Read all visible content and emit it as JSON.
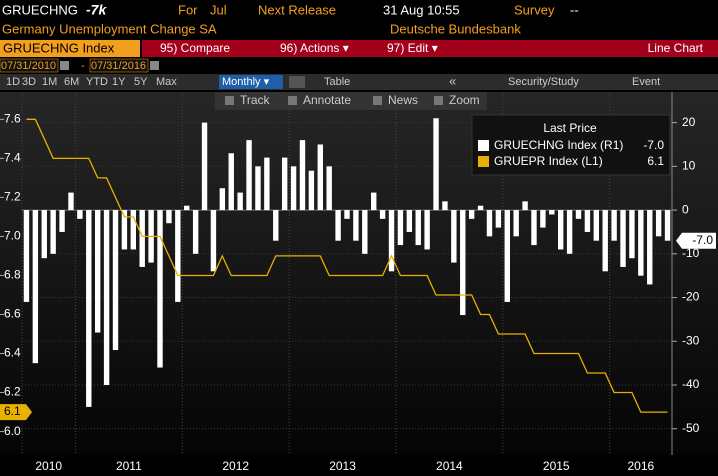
{
  "header": {
    "ticker": "GRUECHNG",
    "last": "-7k",
    "period_label": "For",
    "period": "Jul",
    "release_label": "Next Release",
    "release": "31 Aug 10:55",
    "survey_label": "Survey",
    "survey": "--",
    "name": "Germany Unemployment Change SA",
    "source": "Deutsche Bundesbank"
  },
  "toolbar": {
    "security": "GRUECHNG Index",
    "menu": [
      "95) Compare",
      "96) Actions ▾",
      "97) Edit ▾"
    ],
    "chart_type": "Line Chart",
    "start_date": "07/31/2010",
    "date_sep": "-",
    "end_date": "07/31/2016",
    "ranges": [
      "1D",
      "3D",
      "1M",
      "6M",
      "YTD",
      "1Y",
      "5Y",
      "Max"
    ],
    "frequency": "Monthly ▾",
    "table": "Table",
    "collapse": "«",
    "security_study": "Security/Study",
    "event": "Event",
    "tools": [
      "Track",
      "Annotate",
      "News",
      "Zoom"
    ]
  },
  "chart_data": {
    "type": "bar",
    "legend_title": "Last Price",
    "categories": [
      "2010",
      null,
      null,
      null,
      null,
      null,
      "2011",
      null,
      null,
      null,
      null,
      null,
      null,
      null,
      null,
      null,
      null,
      null,
      "2012",
      null,
      null,
      null,
      null,
      null,
      null,
      null,
      null,
      null,
      null,
      null,
      "2013",
      null,
      null,
      null,
      null,
      null,
      null,
      null,
      null,
      null,
      null,
      null,
      "2014",
      null,
      null,
      null,
      null,
      null,
      null,
      null,
      null,
      null,
      null,
      null,
      "2015",
      null,
      null,
      null,
      null,
      null,
      null,
      null,
      null,
      null,
      null,
      null,
      "2016",
      null,
      null,
      null,
      null,
      null,
      null
    ],
    "series": [
      {
        "name": "GRUECHNG Index  (R1)",
        "last_label": "-7.0",
        "color": "#ffffff",
        "axis": "y2",
        "kind": "bar",
        "values": [
          -21,
          -35,
          -11,
          -10,
          -5,
          4,
          -2,
          -45,
          -28,
          -40,
          -32,
          -9,
          -9,
          -13,
          -12,
          -36,
          -3,
          -21,
          1,
          -10,
          20,
          -14,
          5,
          13,
          4,
          16,
          10,
          12,
          -7,
          12,
          10,
          16,
          9,
          15,
          10,
          -7,
          -2,
          -7,
          -10,
          4,
          -2,
          -14,
          -8,
          -5,
          -8,
          -9,
          21,
          2,
          -12,
          -24,
          -2,
          1,
          -6,
          -4,
          -21,
          -6,
          2,
          -8,
          -4,
          -1,
          -9,
          -10,
          -2,
          -5,
          -7,
          -14,
          -7,
          -13,
          -11,
          -15,
          -17,
          -6,
          -7
        ]
      },
      {
        "name": "GRUEPR Index  (L1)",
        "last_label": "6.1",
        "color": "#e8b100",
        "axis": "y",
        "kind": "line",
        "values": [
          7.6,
          7.6,
          7.5,
          7.4,
          7.4,
          7.4,
          7.4,
          7.4,
          7.3,
          7.3,
          7.2,
          7.1,
          7.1,
          7.0,
          7.0,
          7.0,
          6.9,
          6.8,
          6.8,
          6.8,
          6.8,
          6.8,
          6.9,
          6.8,
          6.8,
          6.8,
          6.8,
          6.8,
          6.9,
          6.9,
          6.9,
          6.9,
          6.9,
          6.9,
          6.8,
          6.8,
          6.8,
          6.8,
          6.8,
          6.8,
          6.8,
          6.9,
          6.8,
          6.8,
          6.8,
          6.8,
          6.7,
          6.7,
          6.7,
          6.7,
          6.7,
          6.6,
          6.6,
          6.5,
          6.5,
          6.5,
          6.5,
          6.4,
          6.4,
          6.4,
          6.4,
          6.4,
          6.4,
          6.3,
          6.3,
          6.3,
          6.2,
          6.2,
          6.2,
          6.1,
          6.1,
          6.1,
          6.1
        ]
      }
    ],
    "ylim": [
      5.88,
      7.74
    ],
    "yticks": [
      {
        "value": 6,
        "label": "6.0"
      },
      6.2,
      6.4,
      6.6,
      6.8,
      {
        "value": 7,
        "label": "7.0"
      },
      7.2,
      7.4,
      7.6
    ],
    "y2lim": [
      -56,
      27
    ],
    "y2ticks": [
      20,
      10,
      0,
      -10,
      -20,
      -30,
      -40,
      -50
    ],
    "grid": true
  }
}
